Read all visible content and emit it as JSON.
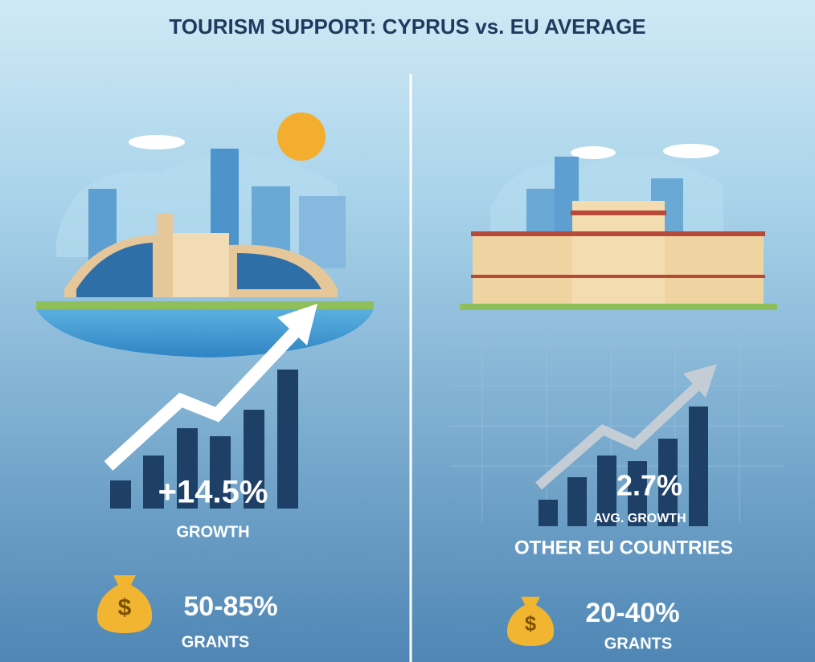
{
  "title": "TOURISM SUPPORT: CYPRUS vs. EU AVERAGE",
  "left": {
    "growth": "+14.5%",
    "growth_label": "GROWTH",
    "grants": "50-85%",
    "grants_label": "GRANTS"
  },
  "right": {
    "growth": "2.7%",
    "growth_label": "AVG. GROWTH",
    "subtitle": "OTHER EU COUNTRIES",
    "grants": "20-40%",
    "grants_label": "GRANTS"
  }
}
